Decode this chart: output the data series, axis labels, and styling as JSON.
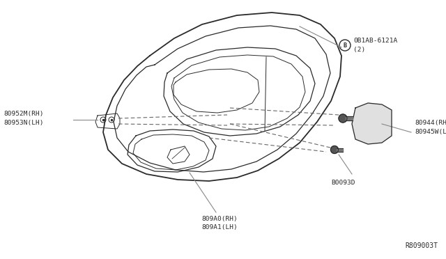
{
  "background_color": "#ffffff",
  "line_color": "#2a2a2a",
  "text_color": "#2a2a2a",
  "gray_line_color": "#888888",
  "dashed_color": "#666666",
  "ref_code": "R809003T",
  "label_left": "80952M(RH)\n80953N(LH)",
  "label_right_top": "80944(RH)\n80945W(LH)",
  "label_right_bot": "B0093D",
  "label_bottom": "809A0(RH)\n809A1(LH)",
  "label_circle_letter": "B",
  "label_circle_text": "0B1AB-6121A\n(2)"
}
